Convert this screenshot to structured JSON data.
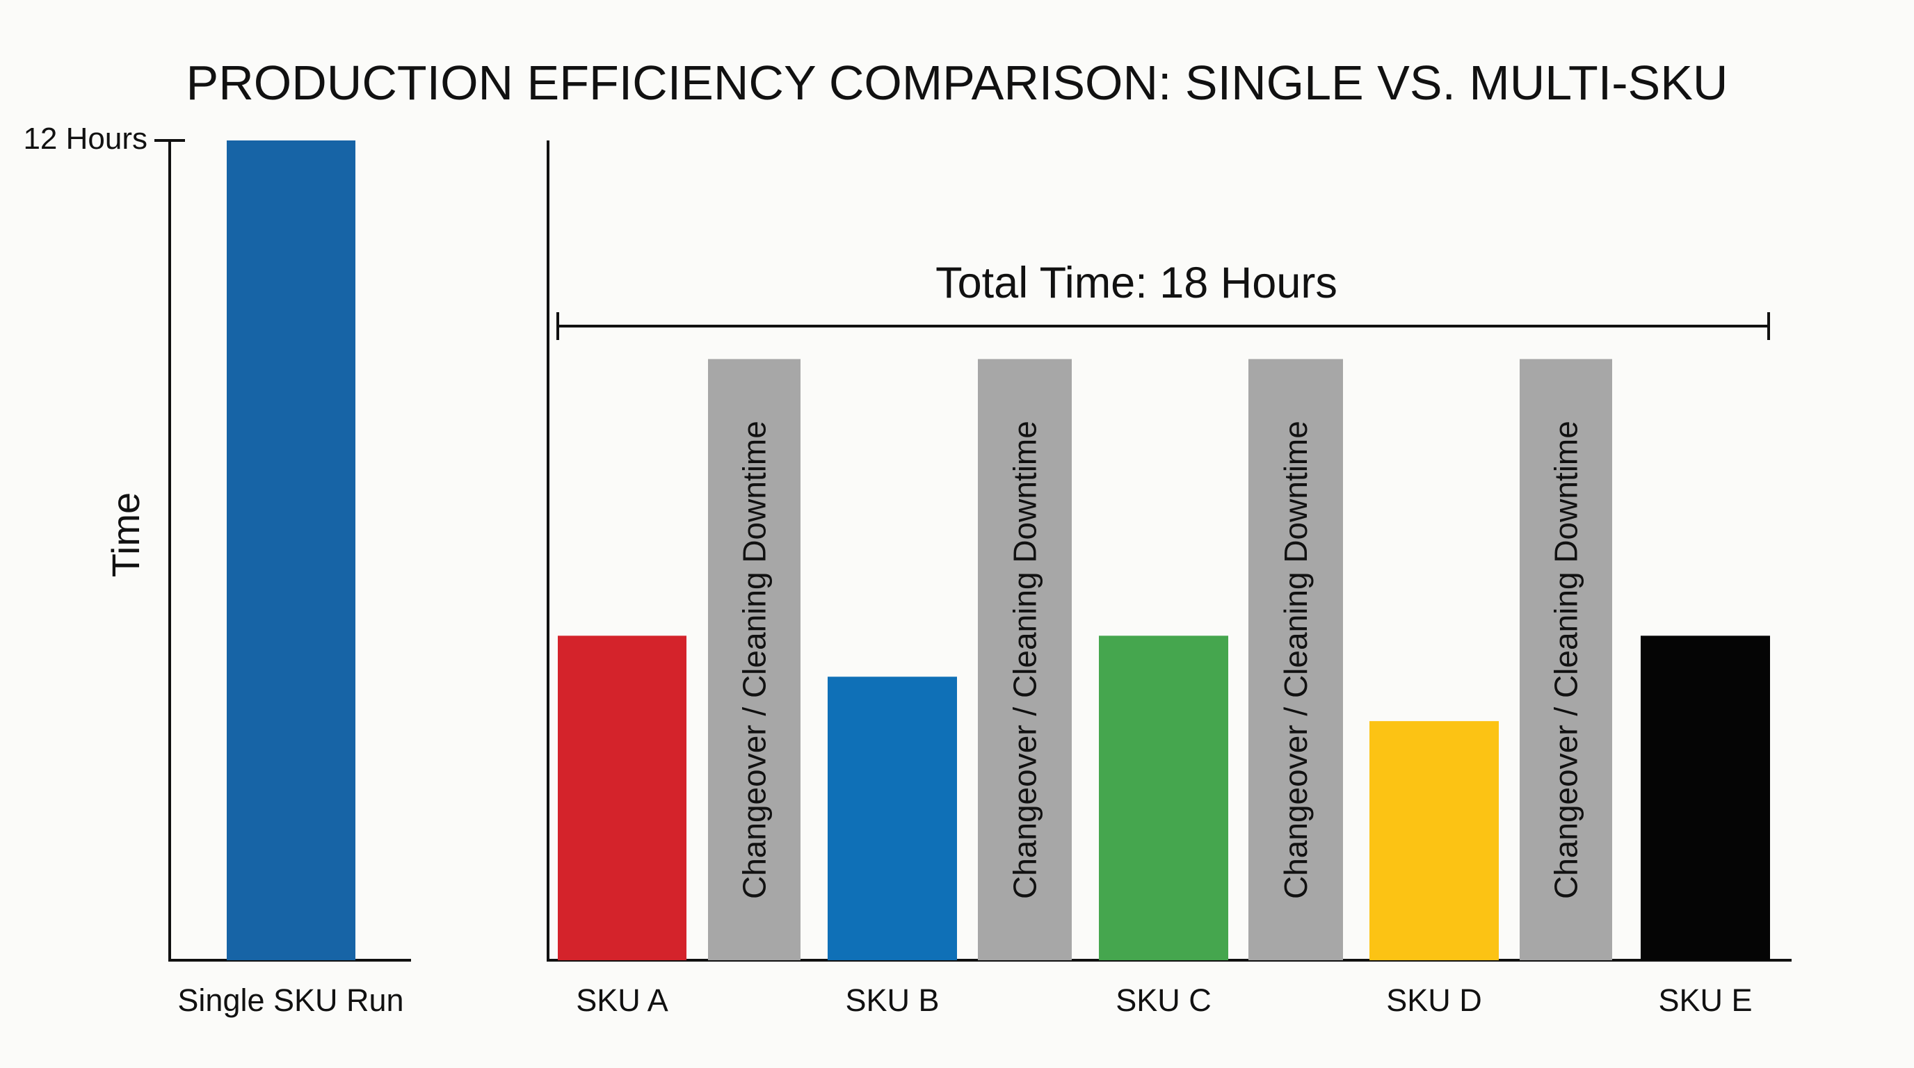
{
  "chart_data": [
    {
      "type": "bar",
      "title": "PRODUCTION EFFICIENCY COMPARISON: SINGLE VS. MULTI-SKU",
      "ylabel": "Time",
      "y_tick_label": "12 Hours",
      "y_unit": "hours",
      "ylim": [
        0,
        12
      ],
      "grid": false,
      "categories": [
        "Single SKU Run"
      ],
      "values": [
        12
      ],
      "colors": [
        "#1764a6"
      ]
    },
    {
      "type": "bar",
      "annotation": "Total Time: 18 Hours",
      "ylim": [
        0,
        12
      ],
      "grid": false,
      "bars": [
        {
          "label": "SKU A",
          "kind": "sku",
          "value": 4.75,
          "color": "#d4232b"
        },
        {
          "label": "Changeover / Cleaning Downtime",
          "kind": "downtime",
          "value": 8.8,
          "color": "#a7a7a7"
        },
        {
          "label": "SKU B",
          "kind": "sku",
          "value": 4.15,
          "color": "#0f70b7"
        },
        {
          "label": "Changeover / Cleaning Downtime",
          "kind": "downtime",
          "value": 8.8,
          "color": "#a7a7a7"
        },
        {
          "label": "SKU C",
          "kind": "sku",
          "value": 4.75,
          "color": "#45a64e"
        },
        {
          "label": "Changeover / Cleaning Downtime",
          "kind": "downtime",
          "value": 8.8,
          "color": "#a7a7a7"
        },
        {
          "label": "SKU D",
          "kind": "sku",
          "value": 3.5,
          "color": "#fcc314"
        },
        {
          "label": "Changeover / Cleaning Downtime",
          "kind": "downtime",
          "value": 8.8,
          "color": "#a7a7a7"
        },
        {
          "label": "SKU E",
          "kind": "sku",
          "value": 4.75,
          "color": "#050505"
        }
      ]
    }
  ]
}
